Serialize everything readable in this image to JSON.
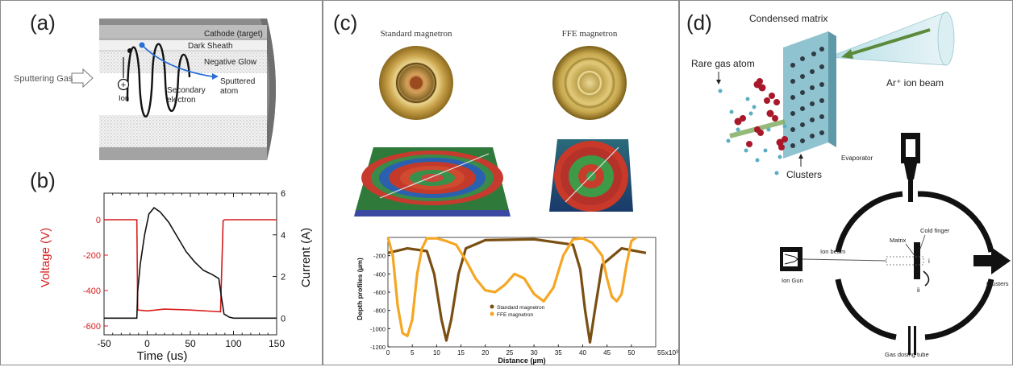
{
  "panel_a": {
    "label": "(a)",
    "cathode": "Cathode (target)",
    "dark_sheath": "Dark Sheath",
    "negative_glow": "Negative Glow",
    "sputtering_gas": "Sputtering Gas",
    "sputtered_atom_1": "Sputtered",
    "sputtered_atom_2": "atom",
    "secondary_electron_1": "Secondary",
    "secondary_electron_2": "electron",
    "ion": "Ion",
    "ion_symbol": "+"
  },
  "panel_b": {
    "label": "(b)",
    "xlabel": "Time (us)",
    "ylabel_left": "Voltage (V)",
    "ylabel_right": "Current (A)",
    "colors": {
      "voltage": "#d81c1c",
      "current": "#111111"
    }
  },
  "panel_c": {
    "label": "(c)",
    "standard_title": "Standard magnetron",
    "ffe_title": "FFE magnetron",
    "xlabel": "Distance (µm)",
    "ylabel": "Depth profiles (µm)",
    "x_multiplier": "55x10³",
    "legend_standard": "Standard magnetron",
    "legend_ffe": "FFE magnetron",
    "colors": {
      "standard": "#7a4f12",
      "ffe": "#f5a623"
    }
  },
  "panel_d": {
    "label": "(d)",
    "condensed_matrix": "Condensed matrix",
    "rare_gas_atom": "Rare gas atom",
    "ion_beam_top": "Ar⁺ ion beam",
    "clusters_top": "Clusters",
    "evaporator": "Evaporator",
    "matrix": "Matrix",
    "cold_finger": "Cold finger",
    "ion_gun": "Ion Gun",
    "ion_beam": "Ion beam",
    "clusters_right": "Clusters",
    "gas_dosing_tube": "Gas dosing tube",
    "roman_i": "i",
    "roman_ii": "ii"
  },
  "chart_data": [
    {
      "type": "line",
      "title": "",
      "xlabel": "Time (us)",
      "ylabel": "Voltage (V)",
      "y2label": "Current (A)",
      "xlim": [
        -50,
        150
      ],
      "ylim": [
        -650,
        150
      ],
      "y2lim": [
        -0.8,
        6
      ],
      "xticks": [
        -50,
        0,
        50,
        100,
        150
      ],
      "yticks": [
        0,
        -200,
        -400,
        -600
      ],
      "y2ticks": [
        0,
        2,
        4,
        6
      ],
      "series": [
        {
          "name": "Voltage",
          "axis": "left",
          "x": [
            -50,
            -15,
            -12,
            -11,
            0,
            20,
            50,
            85,
            88,
            90,
            100,
            150
          ],
          "y": [
            0,
            0,
            0,
            -510,
            -515,
            -505,
            -510,
            -520,
            -5,
            0,
            0,
            0
          ]
        },
        {
          "name": "Current",
          "axis": "right",
          "x": [
            -50,
            -12,
            -11,
            -8,
            -3,
            2,
            8,
            15,
            25,
            35,
            45,
            55,
            65,
            75,
            83,
            86,
            89,
            95,
            100,
            150
          ],
          "y": [
            0,
            0,
            1.3,
            2.6,
            4.0,
            5.0,
            5.3,
            5.1,
            4.6,
            3.9,
            3.2,
            2.7,
            2.3,
            2.1,
            1.9,
            1.0,
            0.2,
            0.05,
            0,
            0
          ]
        }
      ]
    },
    {
      "type": "line",
      "title": "",
      "xlabel": "Distance (µm)",
      "ylabel": "Depth profiles (µm)",
      "xlim": [
        0,
        55
      ],
      "ylim": [
        -1200,
        0
      ],
      "xticks": [
        0,
        5,
        10,
        15,
        20,
        25,
        30,
        35,
        40,
        45,
        50
      ],
      "yticks": [
        -200,
        -400,
        -600,
        -800,
        -1000,
        -1200
      ],
      "series": [
        {
          "name": "Standard magnetron",
          "x": [
            0,
            4,
            8,
            9.5,
            11,
            12,
            13,
            14.5,
            16,
            20,
            30,
            38,
            39.5,
            40.5,
            41.5,
            42.5,
            44,
            48,
            53
          ],
          "y": [
            -170,
            -120,
            -150,
            -400,
            -900,
            -1130,
            -900,
            -400,
            -120,
            -30,
            -20,
            -80,
            -350,
            -800,
            -1150,
            -800,
            -300,
            -120,
            -170
          ]
        },
        {
          "name": "FFE magnetron",
          "x": [
            0,
            1,
            2,
            3,
            4,
            5,
            6,
            7,
            8,
            10,
            12,
            14,
            16,
            18,
            20,
            22,
            24,
            26,
            28,
            30,
            32,
            34,
            36,
            38,
            40,
            42,
            44,
            45,
            46,
            47,
            48,
            49,
            50,
            51
          ],
          "y": [
            0,
            -200,
            -750,
            -1050,
            -1080,
            -900,
            -400,
            -120,
            -10,
            -10,
            -40,
            -80,
            -250,
            -450,
            -580,
            -600,
            -520,
            -400,
            -450,
            -620,
            -700,
            -550,
            -200,
            -20,
            -10,
            -60,
            -200,
            -450,
            -650,
            -700,
            -620,
            -300,
            -40,
            0
          ]
        }
      ]
    }
  ]
}
